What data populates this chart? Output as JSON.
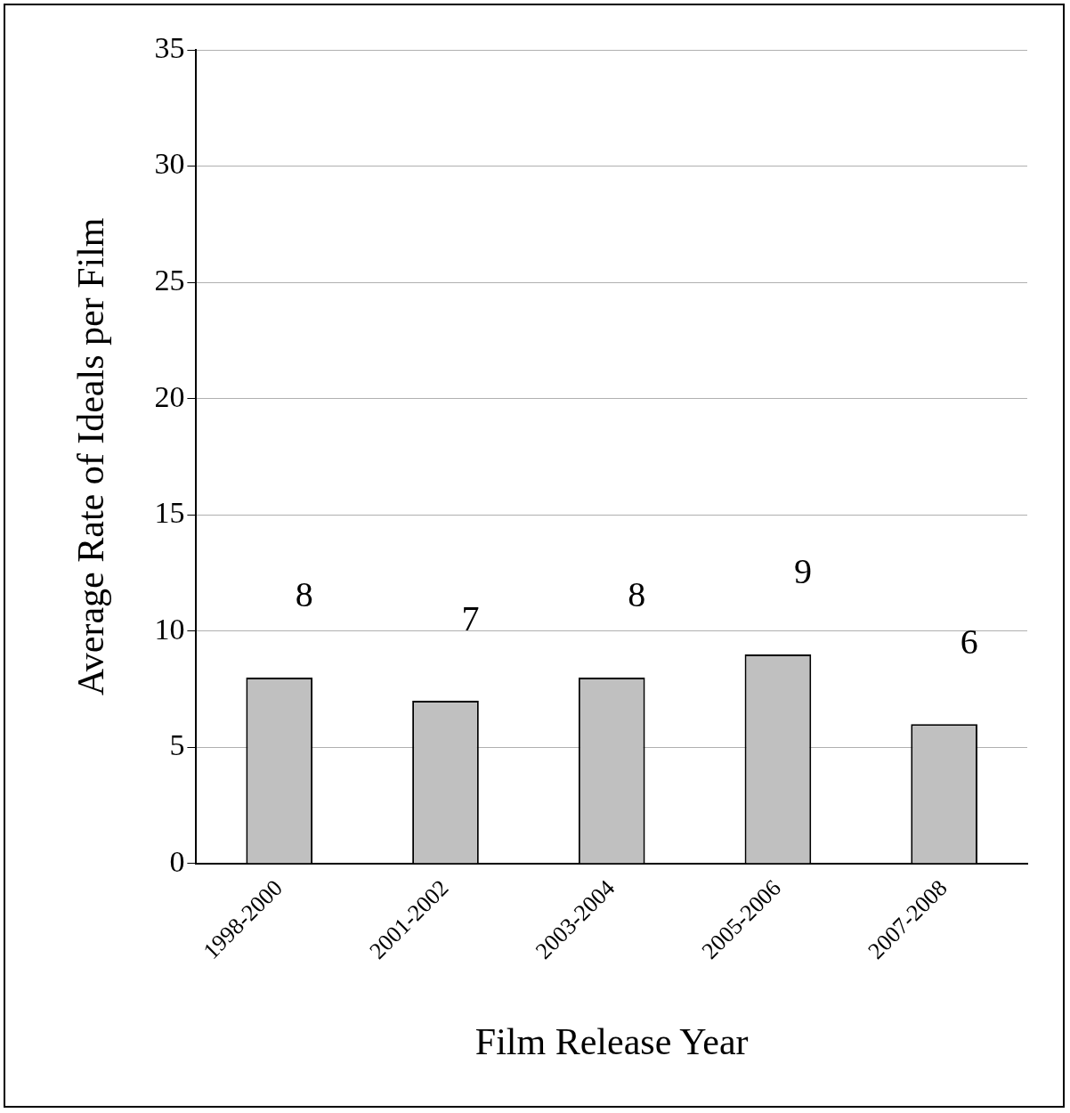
{
  "chart_data": {
    "type": "bar",
    "xlabel": "Film Release Year",
    "ylabel": "Average Rate of Ideals per Film",
    "categories": [
      "1998-2000",
      "2001-2002",
      "2003-2004",
      "2005-2006",
      "2007-2008"
    ],
    "values": [
      8,
      7,
      8,
      9,
      6
    ],
    "color": "#c0c0c0",
    "ylim": [
      0,
      35
    ],
    "yticks": [
      0,
      5,
      10,
      15,
      20,
      25,
      30,
      35
    ],
    "grid": "y",
    "data_labels": true
  }
}
